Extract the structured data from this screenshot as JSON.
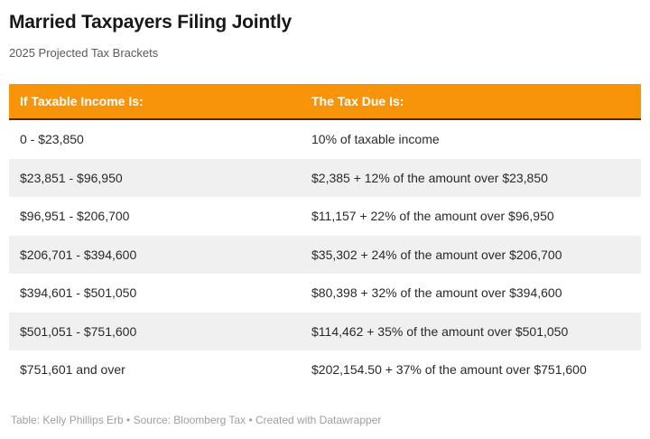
{
  "page": {
    "title": "Married Taxpayers Filing Jointly",
    "subtitle": "2025 Projected Tax Brackets",
    "footer": "Table: Kelly Phillips Erb • Source: Bloomberg Tax • Created with Datawrapper"
  },
  "table": {
    "columns": [
      "If Taxable Income Is:",
      "The Tax Due Is:"
    ],
    "rows": [
      {
        "income": "0 - $23,850",
        "tax_due": "10% of taxable income"
      },
      {
        "income": "$23,851 - $96,950",
        "tax_due": "$2,385 + 12% of the amount over $23,850"
      },
      {
        "income": "$96,951 - $206,700",
        "tax_due": "$11,157 + 22% of the amount over $96,950"
      },
      {
        "income": "$206,701 - $394,600",
        "tax_due": "$35,302 + 24% of the amount over $206,700"
      },
      {
        "income": "$394,601 - $501,050",
        "tax_due": "$80,398 + 32% of the amount over $394,600"
      },
      {
        "income": "$501,051 - $751,600",
        "tax_due": "$114,462 + 35% of the amount over $501,050"
      },
      {
        "income": "$751,601 and over",
        "tax_due": "$202,154.50 + 37% of the amount over $751,600"
      }
    ]
  },
  "colors": {
    "header_background": "#F7940A",
    "header_text": "#FFFFFF",
    "header_bottom_border": "#38301F",
    "row_stripe": "#F0F0F0",
    "row_text": "#292929",
    "subtitle_text": "#595959",
    "footer_text": "#9E9E9E"
  },
  "chart_data": {
    "type": "table",
    "title": "Married Taxpayers Filing Jointly",
    "subtitle": "2025 Projected Tax Brackets",
    "columns": [
      "If Taxable Income Is:",
      "The Tax Due Is:"
    ],
    "rows": [
      [
        "0 - $23,850",
        "10% of taxable income"
      ],
      [
        "$23,851 - $96,950",
        "$2,385 + 12% of the amount over $23,850"
      ],
      [
        "$96,951 - $206,700",
        "$11,157 + 22% of the amount over $96,950"
      ],
      [
        "$206,701 - $394,600",
        "$35,302 + 24% of the amount over $206,700"
      ],
      [
        "$394,601 - $501,050",
        "$80,398 + 32% of the amount over $394,600"
      ],
      [
        "$501,051 - $751,600",
        "$114,462 + 35% of the amount over $501,050"
      ],
      [
        "$751,601 and over",
        "$202,154.50 + 37% of the amount over $751,600"
      ]
    ],
    "brackets": [
      {
        "min": 0,
        "max": 23850,
        "rate_pct": 10,
        "base_tax": 0
      },
      {
        "min": 23851,
        "max": 96950,
        "rate_pct": 12,
        "base_tax": 2385
      },
      {
        "min": 96951,
        "max": 206700,
        "rate_pct": 22,
        "base_tax": 11157
      },
      {
        "min": 206701,
        "max": 394600,
        "rate_pct": 24,
        "base_tax": 35302
      },
      {
        "min": 394601,
        "max": 501050,
        "rate_pct": 32,
        "base_tax": 80398
      },
      {
        "min": 501051,
        "max": 751600,
        "rate_pct": 35,
        "base_tax": 114462
      },
      {
        "min": 751601,
        "max": null,
        "rate_pct": 37,
        "base_tax": 202154.5
      }
    ],
    "credit": "Kelly Phillips Erb",
    "source": "Bloomberg Tax",
    "tool": "Datawrapper"
  }
}
